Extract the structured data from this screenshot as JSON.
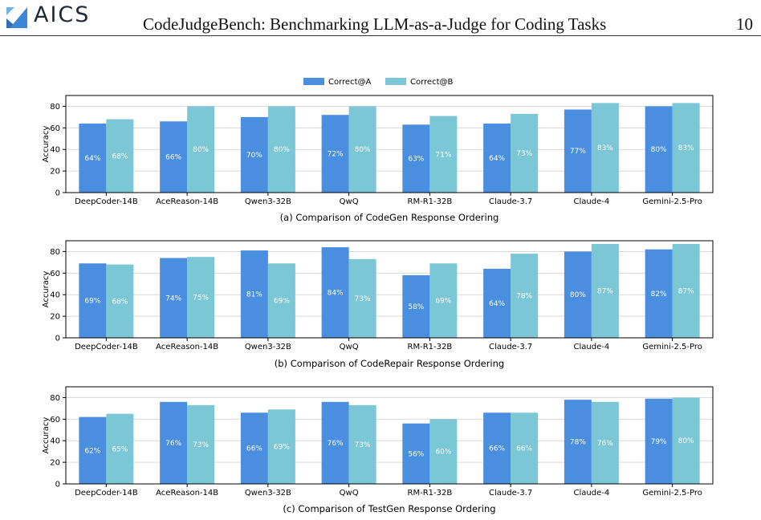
{
  "header": {
    "logo_text": "AICS",
    "title": "CodeJudgeBench: Benchmarking LLM-as-a-Judge for Coding Tasks",
    "page_number": "10"
  },
  "legend": {
    "position": "top-center",
    "items": [
      {
        "label": "Correct@A",
        "color": "#4a8ee0"
      },
      {
        "label": "Correct@B",
        "color": "#7cc7d6"
      }
    ]
  },
  "chart_data": [
    {
      "type": "bar",
      "caption": "(a) Comparison of CodeGen Response Ordering",
      "ylabel": "Accuracy",
      "ylim": [
        0,
        90
      ],
      "yticks": [
        0,
        20,
        40,
        60,
        80
      ],
      "grid": true,
      "categories": [
        "DeepCoder-14B",
        "AceReason-14B",
        "Qwen3-32B",
        "QwQ",
        "RM-R1-32B",
        "Claude-3.7",
        "Claude-4",
        "Gemini-2.5-Pro"
      ],
      "series": [
        {
          "name": "Correct@A",
          "values": [
            64,
            66,
            70,
            72,
            63,
            64,
            77,
            80
          ],
          "labels": [
            "64%",
            "66%",
            "70%",
            "72%",
            "63%",
            "64%",
            "77%",
            "80%"
          ]
        },
        {
          "name": "Correct@B",
          "values": [
            68,
            80,
            80,
            80,
            71,
            73,
            83,
            83
          ],
          "labels": [
            "68%",
            "80%",
            "80%",
            "80%",
            "71%",
            "73%",
            "83%",
            "83%"
          ]
        }
      ]
    },
    {
      "type": "bar",
      "caption": "(b) Comparison of CodeRepair Response Ordering",
      "ylabel": "Accuracy",
      "ylim": [
        0,
        90
      ],
      "yticks": [
        0,
        20,
        40,
        60,
        80
      ],
      "grid": true,
      "categories": [
        "DeepCoder-14B",
        "AceReason-14B",
        "Qwen3-32B",
        "QwQ",
        "RM-R1-32B",
        "Claude-3.7",
        "Claude-4",
        "Gemini-2.5-Pro"
      ],
      "series": [
        {
          "name": "Correct@A",
          "values": [
            69,
            74,
            81,
            84,
            58,
            64,
            80,
            82
          ],
          "labels": [
            "69%",
            "74%",
            "81%",
            "84%",
            "58%",
            "64%",
            "80%",
            "82%"
          ]
        },
        {
          "name": "Correct@B",
          "values": [
            68,
            75,
            69,
            73,
            69,
            78,
            87,
            87
          ],
          "labels": [
            "68%",
            "75%",
            "69%",
            "73%",
            "69%",
            "78%",
            "87%",
            "87%"
          ]
        }
      ]
    },
    {
      "type": "bar",
      "caption": "(c) Comparison of TestGen Response Ordering",
      "ylabel": "Accuracy",
      "ylim": [
        0,
        90
      ],
      "yticks": [
        0,
        20,
        40,
        60,
        80
      ],
      "grid": true,
      "categories": [
        "DeepCoder-14B",
        "AceReason-14B",
        "Qwen3-32B",
        "QwQ",
        "RM-R1-32B",
        "Claude-3.7",
        "Claude-4",
        "Gemini-2.5-Pro"
      ],
      "series": [
        {
          "name": "Correct@A",
          "values": [
            62,
            76,
            66,
            76,
            56,
            66,
            78,
            79
          ],
          "labels": [
            "62%",
            "76%",
            "66%",
            "76%",
            "56%",
            "66%",
            "78%",
            "79%"
          ]
        },
        {
          "name": "Correct@B",
          "values": [
            65,
            73,
            69,
            73,
            60,
            66,
            76,
            80
          ],
          "labels": [
            "65%",
            "73%",
            "69%",
            "73%",
            "60%",
            "66%",
            "76%",
            "80%"
          ]
        }
      ]
    }
  ]
}
